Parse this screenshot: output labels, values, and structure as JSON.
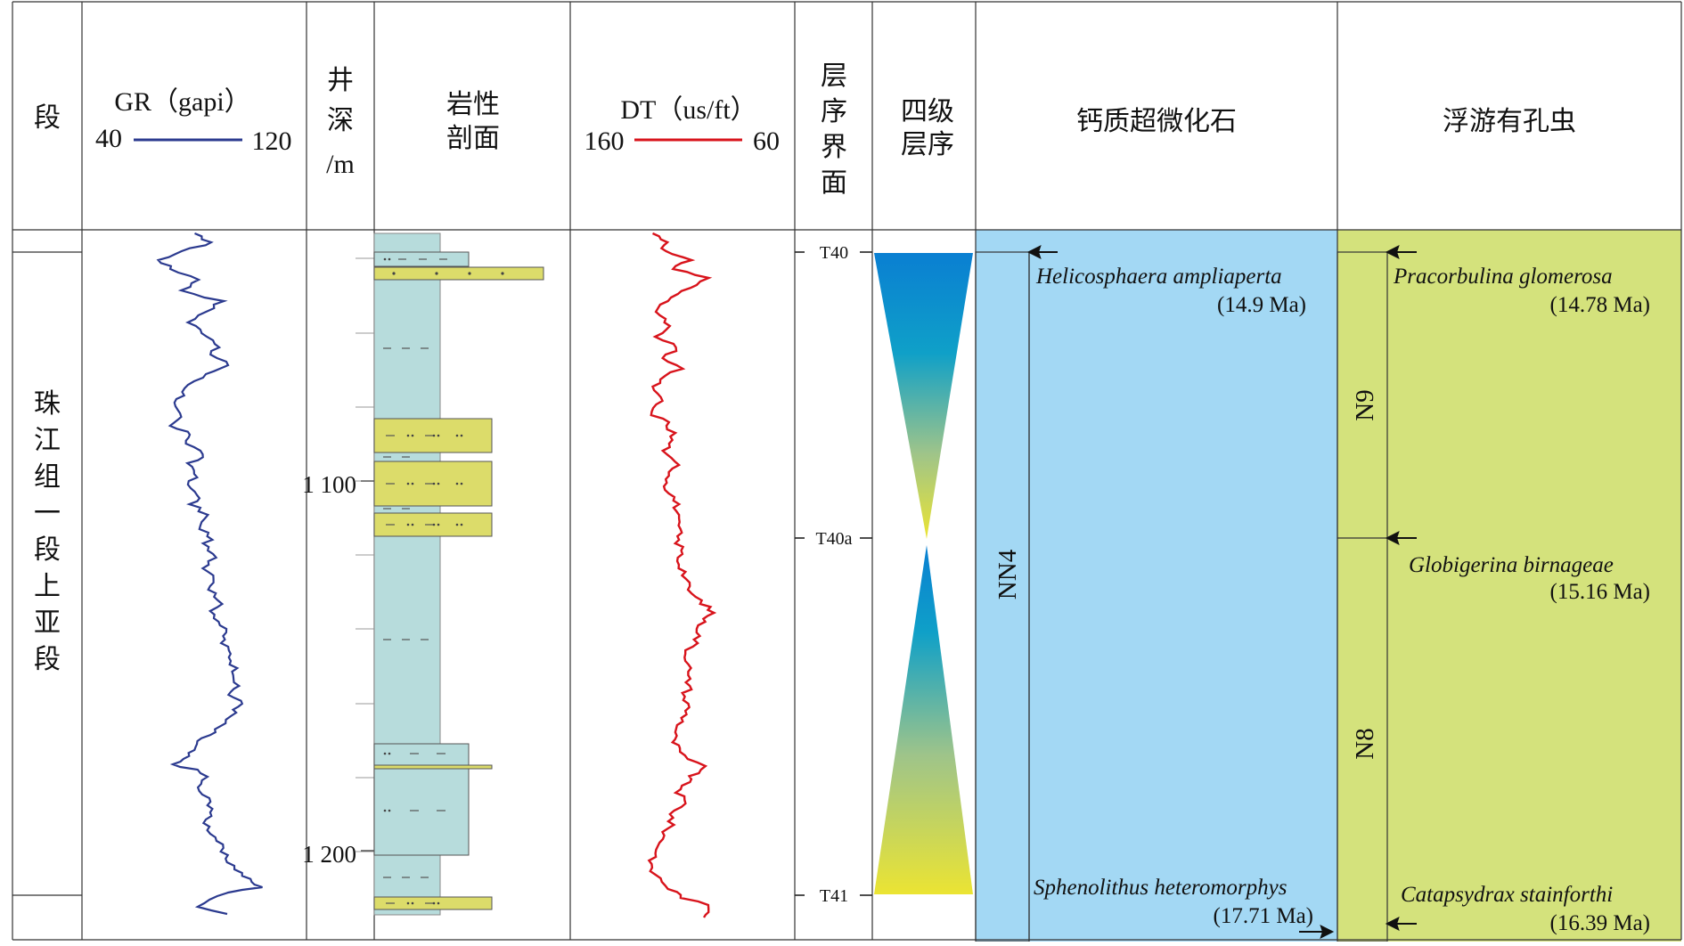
{
  "headers": {
    "segment": "段",
    "gr_title": "GR（gapi）",
    "gr_min": "40",
    "gr_max": "120",
    "depth_title": [
      "井",
      "深",
      "/m"
    ],
    "lith_title": [
      "岩性",
      "剖面"
    ],
    "dt_title": "DT（us/ft）",
    "dt_min": "160",
    "dt_max": "60",
    "boundary_title": [
      "层",
      "序",
      "界",
      "面"
    ],
    "sequence_title": [
      "四级",
      "层序"
    ],
    "nanno_title": "钙质超微化石",
    "foram_title": "浮游有孔虫"
  },
  "formation": [
    "珠",
    "江",
    "组",
    "一",
    "段",
    "上",
    "亚",
    "段"
  ],
  "depth_labels": [
    "1 100",
    "1 200"
  ],
  "boundaries": [
    "T40",
    "T40a",
    "T41"
  ],
  "nanno": {
    "zone": "NN4",
    "top_species": "Helicosphaera ampliaperta",
    "top_age": "(14.9 Ma)",
    "base_species": "Sphenolithus heteromorphys",
    "base_age": "(17.71 Ma)"
  },
  "foram": {
    "zone_upper": "N9",
    "zone_lower": "N8",
    "top_species": "Pracorbulina glomerosa",
    "top_age": "(14.78 Ma)",
    "mid_species": "Globigerina birnageae",
    "mid_age": "(15.16 Ma)",
    "base_species": "Catapsydrax stainforthi",
    "base_age": "(16.39 Ma)"
  },
  "colors": {
    "gr_curve": "#2b3a8f",
    "dt_curve": "#d8131b",
    "shale": "#b7dcdc",
    "sand": "#dcdc6a",
    "nanno_fill": "#a3d8f4",
    "foram_fill": "#d4e27c",
    "seq_blue": "#0a7fd2",
    "seq_yellow": "#ebe433"
  }
}
